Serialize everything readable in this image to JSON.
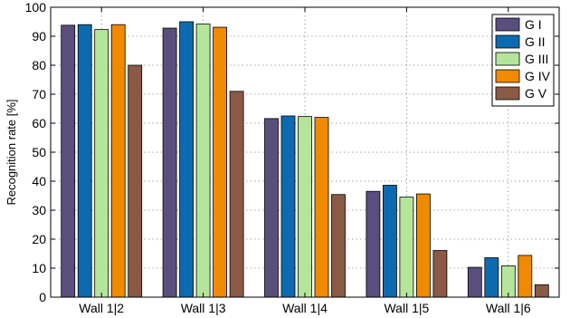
{
  "chart_data": {
    "type": "bar",
    "title": "",
    "xlabel": "",
    "ylabel": "Recognition rate [%]",
    "ylim": [
      0,
      100
    ],
    "yticks": [
      0,
      10,
      20,
      30,
      40,
      50,
      60,
      70,
      80,
      90,
      100
    ],
    "grid": true,
    "legend_position": "top-right",
    "categories": [
      "Wall 1|2",
      "Wall 1|3",
      "Wall 1|4",
      "Wall 1|5",
      "Wall 1|6"
    ],
    "series": [
      {
        "name": "G I",
        "color": "#5a4f7c",
        "values": [
          93.8,
          92.8,
          61.6,
          36.5,
          10.3
        ]
      },
      {
        "name": "G II",
        "color": "#0e6ab0",
        "values": [
          94.0,
          95.0,
          62.5,
          38.6,
          13.6
        ]
      },
      {
        "name": "G III",
        "color": "#b5e59a",
        "values": [
          92.3,
          94.2,
          62.3,
          34.5,
          10.8
        ]
      },
      {
        "name": "G IV",
        "color": "#f08a00",
        "values": [
          94.0,
          93.1,
          62.0,
          35.6,
          14.4
        ]
      },
      {
        "name": "G V",
        "color": "#8a5a45",
        "values": [
          80.0,
          71.0,
          35.4,
          16.1,
          4.3
        ]
      }
    ]
  }
}
